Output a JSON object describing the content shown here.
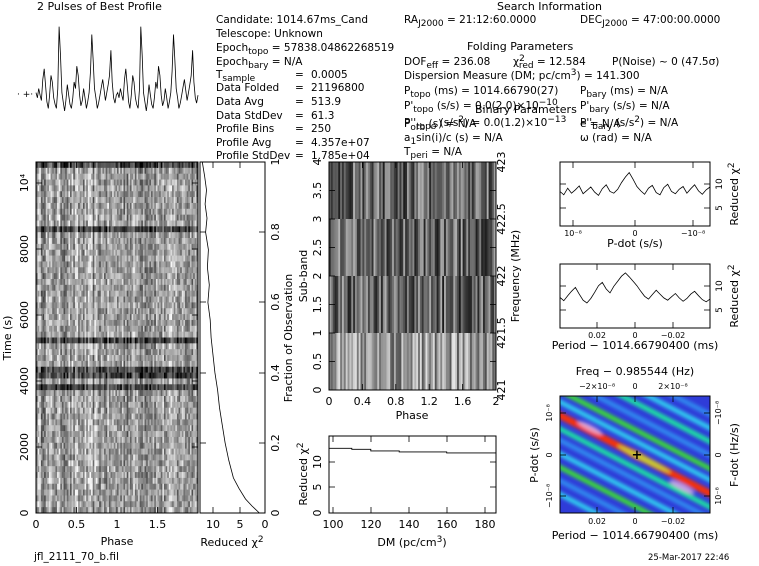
{
  "header": {
    "profile_title": "2 Pulses of Best Profile",
    "search_title": "Search Information",
    "folding_title": "Folding Parameters",
    "binary_title": "Binary Parameters",
    "filename": "jfl_2111_70_b.fil",
    "timestamp": "25-Mar-2017 22:46"
  },
  "info": {
    "candidate": "Candidate:  1014.67ms_Cand",
    "telescope": "Telescope:  Unknown",
    "epoch_topo": "Epoch",
    "epoch_topo_sub": "topo",
    "epoch_topo_val": " = 57838.04862268519",
    "epoch_bary": "Epoch",
    "epoch_bary_sub": "bary",
    "epoch_bary_val": " = N/A",
    "t_sample": "T",
    "t_sample_sub": "sample",
    "t_sample_val": "0.0005",
    "data_folded_label": "Data Folded",
    "data_folded_val": "21196800",
    "data_avg_label": "Data Avg",
    "data_avg_val": "513.9",
    "data_std_label": "Data StdDev",
    "data_std_val": "61.3",
    "profile_bins_label": "Profile Bins",
    "profile_bins_val": "250",
    "profile_avg_label": "Profile Avg",
    "profile_avg_val": "4.357e+07",
    "profile_std_label": "Profile StdDev",
    "profile_std_val": "1.785e+04",
    "ra": "RA",
    "ra_sub": "J2000",
    "ra_val": " = 21:12:60.0000",
    "dec": "DEC",
    "dec_sub": "J2000",
    "dec_val": " = 47:00:00.0000",
    "dof": "DOF",
    "dof_sub": "eff",
    "dof_val": " = 236.08",
    "chi": "χ",
    "chi_sup": "2",
    "chi_sub": "red",
    "chi_val": " = 12.584",
    "pnoise": "P(Noise) ~ 0    (47.5σ)",
    "dm_line": "Dispersion Measure (DM; pc/cm",
    "dm_sup": "3",
    "dm_val": ") = 141.300",
    "p_topo": "P",
    "p_topo_sub": "topo",
    "p_topo_val": " (ms)  =  1014.66790(27)",
    "p_bary": "P",
    "p_bary_sub": "bary",
    "p_bary_val": " (ms) = N/A",
    "pd_topo": "P'",
    "pd_topo_sub": "topo",
    "pd_topo_val": " (s/s) = 0.0(2.0)×10",
    "pd_topo_exp": "−10",
    "pd_bary": "P'",
    "pd_bary_sub": "bary",
    "pd_bary_val": " (s/s) = N/A",
    "pdd_topo": "P''",
    "pdd_topo_sub": "topo",
    "pdd_topo_val": " (s/s",
    "pdd_topo_sup": "2",
    "pdd_topo_val2": ") = 0.0(1.2)×10",
    "pdd_topo_exp": "−13",
    "pdd_bary": "P''",
    "pdd_bary_sub": "bary",
    "pdd_bary_val": " (s/s",
    "pdd_bary_sup": "2",
    "pdd_bary_val2": ") = N/A",
    "porb": "P",
    "porb_sub": "orb",
    "porb_val": " (s) = N/A",
    "ecc": "e = N/A",
    "a1": "a",
    "a1_sub": "1",
    "a1_val": "sin(i)/c (s) = N/A",
    "omega": "ω (rad) = N/A",
    "tperi": "T",
    "tperi_sub": "peri",
    "tperi_val": " = N/A"
  },
  "colors": {
    "ink": "#000000",
    "cmap": [
      "#1a1aa0",
      "#2f3cd8",
      "#2f8cf0",
      "#2fd0f0",
      "#1ce8a0",
      "#3ce030",
      "#b8f040",
      "#e8b8e8",
      "#ff3000"
    ]
  },
  "chart_data": [
    {
      "id": "profile",
      "type": "line",
      "title": "2 Pulses of Best Profile",
      "x_range": [
        0,
        2
      ],
      "series": [
        {
          "name": "profile",
          "values": [
            0.42,
            0.38,
            0.45,
            0.4,
            0.36,
            0.52,
            0.6,
            0.48,
            0.35,
            0.3,
            0.4,
            0.55,
            0.5,
            0.38,
            0.33,
            0.3,
            0.45,
            0.92,
            0.7,
            0.42,
            0.35,
            0.28,
            0.36,
            0.48,
            0.4,
            0.33,
            0.3,
            0.38,
            0.5,
            0.45,
            0.62,
            0.55,
            0.4,
            0.32,
            0.36,
            0.45,
            0.38,
            0.3,
            0.35,
            0.42,
            0.58,
            0.86,
            0.66,
            0.45,
            0.38,
            0.3,
            0.34,
            0.4,
            0.46,
            0.52,
            0.44,
            0.36,
            0.42,
            0.48,
            0.55,
            0.74,
            0.5,
            0.38,
            0.34,
            0.4,
            0.42,
            0.38,
            0.45,
            0.4,
            0.36,
            0.52,
            0.6,
            0.48,
            0.35,
            0.3,
            0.4,
            0.55,
            0.5,
            0.38,
            0.33,
            0.3,
            0.45,
            0.92,
            0.7,
            0.42,
            0.35,
            0.28,
            0.36,
            0.48,
            0.4,
            0.33,
            0.3,
            0.38,
            0.5,
            0.45,
            0.62,
            0.55,
            0.4,
            0.32,
            0.36,
            0.45,
            0.38,
            0.3,
            0.35,
            0.42,
            0.58,
            0.86,
            0.66,
            0.45,
            0.38,
            0.3,
            0.34,
            0.4,
            0.46,
            0.52,
            0.44,
            0.36,
            0.42,
            0.48,
            0.55,
            0.74,
            0.5,
            0.38,
            0.34,
            0.4
          ]
        }
      ],
      "annotations": [
        "baseline markers at left"
      ]
    },
    {
      "id": "time_phase",
      "type": "heatmap",
      "xlabel": "Phase",
      "ylabel": "Time (s)",
      "x_ticks": [
        "0",
        "0.5",
        "1",
        "1.5"
      ],
      "y_ticks": [
        "0",
        "2000",
        "4000",
        "6000",
        "8000",
        "10⁴"
      ],
      "x_range": [
        0,
        2
      ],
      "y_range": [
        0,
        10600
      ],
      "colormap": "grayscale"
    },
    {
      "id": "chi_vs_time",
      "type": "line",
      "xlabel": "Reduced χ²",
      "ylabel": "Fraction of Observation",
      "x_ticks": [
        "10",
        "5",
        "0"
      ],
      "y_ticks": [
        "0",
        "0.2",
        "0.4",
        "0.6",
        "0.8",
        "1"
      ],
      "x_range": [
        14,
        0
      ],
      "y_range": [
        0,
        1
      ],
      "series": [
        {
          "name": "chi2 cumulative",
          "x": [
            13.5,
            13.0,
            12.6,
            12.9,
            12.5,
            12.8,
            12.2,
            12.4,
            12.0,
            12.3,
            11.8,
            11.6,
            11.2,
            10.8,
            10.2,
            9.8,
            9.2,
            8.6,
            7.8,
            6.8,
            5.6,
            4.2,
            2.8,
            1.2
          ],
          "y": [
            1.0,
            0.96,
            0.92,
            0.88,
            0.84,
            0.8,
            0.75,
            0.7,
            0.65,
            0.6,
            0.55,
            0.5,
            0.45,
            0.4,
            0.35,
            0.3,
            0.25,
            0.2,
            0.15,
            0.1,
            0.07,
            0.04,
            0.02,
            0.0
          ]
        }
      ]
    },
    {
      "id": "subband_phase",
      "type": "heatmap",
      "xlabel": "Phase",
      "ylabel": "Sub-band",
      "y2label": "Frequency (MHz)",
      "x_ticks": [
        "0",
        "0.4",
        "0.8",
        "1.2",
        "1.6",
        "2"
      ],
      "y_ticks": [
        "0",
        "0.5",
        "1",
        "1.5",
        "2",
        "2.5",
        "3",
        "3.5",
        "4"
      ],
      "y2_ticks": [
        "421",
        "421.5",
        "422",
        "422.5",
        "423"
      ],
      "x_range": [
        0,
        2
      ],
      "y_range": [
        0,
        4
      ],
      "colormap": "grayscale"
    },
    {
      "id": "dm_chi",
      "type": "line",
      "xlabel": "DM (pc/cm³)",
      "ylabel": "Reduced χ²",
      "x_ticks": [
        "100",
        "120",
        "140",
        "160",
        "180"
      ],
      "y_ticks": [
        "0",
        "5",
        "10"
      ],
      "x_range": [
        98,
        186
      ],
      "y_range": [
        0,
        15
      ],
      "series": [
        {
          "name": "chi2",
          "x": [
            98,
            100,
            110,
            120,
            135,
            160,
            186
          ],
          "y": [
            12.6,
            12.6,
            12.4,
            12.1,
            11.9,
            11.7,
            11.5
          ]
        }
      ]
    },
    {
      "id": "pdot_chi",
      "type": "line",
      "xlabel": "P-dot (s/s)",
      "ylabel": "Reduced χ²",
      "x_ticks": [
        "10⁻⁸",
        "0",
        "−10⁻⁸"
      ],
      "y_ticks": [
        "5",
        "10"
      ],
      "series": [
        {
          "name": "chi2",
          "values": [
            10.2,
            9.6,
            10.8,
            9.9,
            10.5,
            11.2,
            9.8,
            10.4,
            11.0,
            10.1,
            9.5,
            10.7,
            11.4,
            10.2,
            9.9,
            10.6,
            11.8,
            12.8,
            13.6,
            12.4,
            11.1,
            10.3,
            9.7,
            10.8,
            11.3,
            10.0,
            9.6,
            10.9,
            11.5,
            10.2,
            9.8,
            10.6,
            11.1,
            9.9,
            10.7,
            11.4,
            10.3,
            9.7,
            10.5,
            11.0
          ]
        }
      ]
    },
    {
      "id": "period_chi",
      "type": "line",
      "xlabel": "Period − 1014.66790400 (ms)",
      "ylabel": "Reduced χ²",
      "x_ticks": [
        "0.02",
        "0",
        "−0.02"
      ],
      "y_ticks": [
        "5",
        "10"
      ],
      "series": [
        {
          "name": "chi2",
          "values": [
            9.5,
            8.9,
            9.8,
            10.6,
            11.3,
            10.1,
            9.0,
            8.5,
            9.3,
            10.4,
            11.6,
            12.2,
            11.0,
            10.3,
            11.5,
            12.4,
            13.3,
            13.9,
            13.2,
            12.4,
            11.6,
            10.6,
            9.7,
            9.2,
            10.0,
            10.8,
            10.1,
            9.4,
            9.0,
            9.6,
            10.2,
            9.4,
            8.8,
            9.3,
            10.1,
            10.6,
            9.8,
            9.1,
            8.7,
            9.2
          ]
        }
      ]
    },
    {
      "id": "ppdot_plane",
      "type": "heatmap",
      "title": "Freq − 0.985544 (Hz)",
      "xlabel": "Period − 1014.66790400 (ms)",
      "ylabel": "P-dot (s/s)",
      "y2label": "F-dot (Hz/s)",
      "x_ticks": [
        "0.02",
        "0",
        "−0.02"
      ],
      "x2_ticks": [
        "−2×10⁻⁸",
        "0",
        "2×10⁻⁸"
      ],
      "y_ticks": [
        "−10⁻⁸",
        "0",
        "10⁻⁸"
      ],
      "y2_ticks": [
        "10⁻⁸",
        "0",
        "−10⁻⁸"
      ],
      "peak_marker": "+",
      "colormap": "rainbow"
    }
  ]
}
